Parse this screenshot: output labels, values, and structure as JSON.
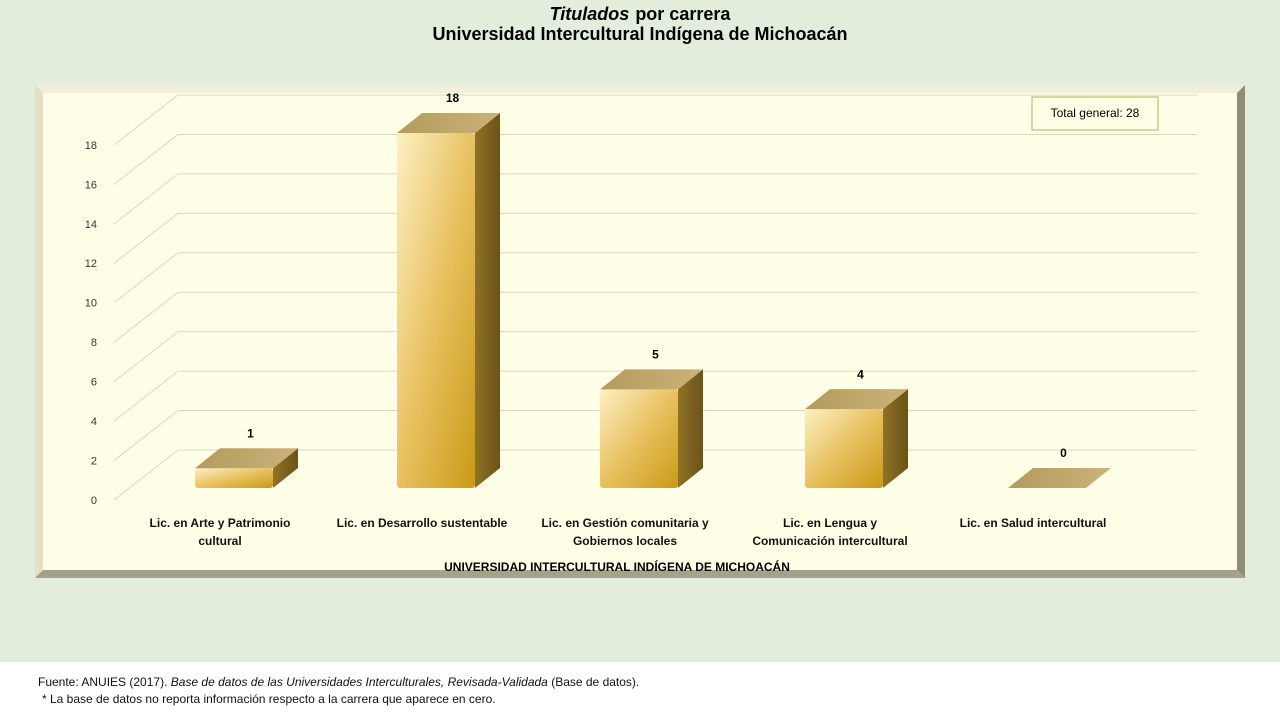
{
  "chart_data": {
    "type": "bar",
    "title_italic": "Titulados",
    "title": "por carrera",
    "subtitle": "Universidad Intercultural Indígena de Michoacán",
    "x_label": "UNIVERSIDAD INTERCULTURAL INDÍGENA DE MICHOACÁN",
    "annotation": "Total  general: 28",
    "categories": [
      "Lic. en Arte y Patrimonio cultural",
      "Lic. en Desarrollo sustentable",
      "Lic. en Gestión comunitaria y Gobiernos locales",
      "Lic. en Lengua y Comunicación intercultural",
      "Lic. en Salud intercultural"
    ],
    "values": [
      1,
      18,
      5,
      4,
      0
    ],
    "color": "#d4a93a",
    "ylim": [
      0,
      18
    ],
    "yticks": [
      0,
      2,
      4,
      6,
      8,
      10,
      12,
      14,
      16,
      18
    ],
    "grid": true
  },
  "footer": {
    "source_prefix": "Fuente: ANUIES  (2017).",
    "source_title": "Base de datos de las Universidades  Interculturales, Revisada-Validada",
    "source_suffix": " (Base de datos).",
    "note": "* La base de datos no reporta información  respecto a la carrera  que aparece en cero."
  }
}
